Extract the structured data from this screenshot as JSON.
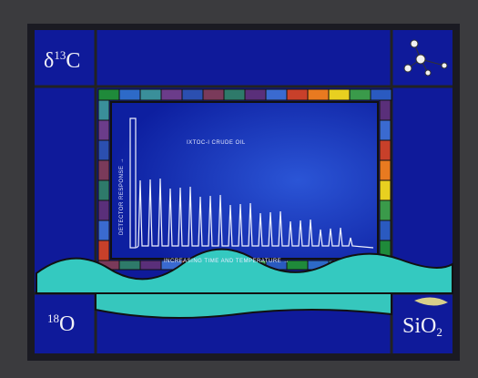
{
  "corners": {
    "top_left": {
      "symbol": "δ",
      "superscript": "13",
      "element": "C"
    },
    "bottom_left": {
      "superscript": "18",
      "element": "O"
    },
    "bottom_right": {
      "element": "SiO",
      "subscript": "2"
    }
  },
  "chart_panel": {
    "title": "IXTOC-I CRUDE OIL",
    "y_label": "DETECTOR RESPONSE →",
    "x_label": "INCREASING TIME AND TEMPERATURE →"
  }
}
